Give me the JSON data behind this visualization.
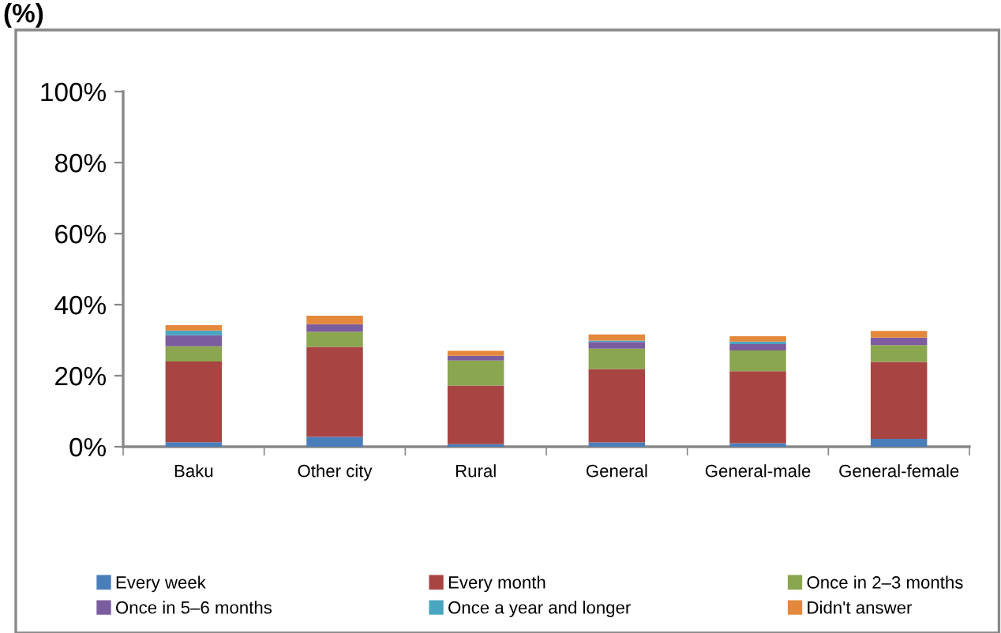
{
  "chart_data": {
    "type": "bar",
    "stacked": true,
    "title": "(%)",
    "categories": [
      "Baku",
      "Other city",
      "Rural",
      "General",
      "General-male",
      "General-female"
    ],
    "series": [
      {
        "name": "Every week",
        "color": "#4a7ebb",
        "values": [
          1.3,
          2.8,
          0.7,
          1.2,
          1.0,
          2.2
        ]
      },
      {
        "name": "Every month",
        "color": "#a84543",
        "values": [
          22.7,
          25.3,
          16.5,
          20.7,
          20.3,
          21.7
        ]
      },
      {
        "name": "Once in 2–3 months",
        "color": "#8aa64f",
        "values": [
          4.3,
          4.3,
          7.1,
          5.7,
          5.8,
          4.7
        ]
      },
      {
        "name": "Once in 5–6 months",
        "color": "#7b5c9e",
        "values": [
          3.1,
          2.1,
          1.3,
          1.9,
          1.8,
          2.1
        ]
      },
      {
        "name": "Once a year and longer",
        "color": "#4aa5c0",
        "values": [
          1.3,
          0,
          0,
          0.4,
          0.7,
          0
        ]
      },
      {
        "name": "Didn't answer",
        "color": "#e4883b",
        "values": [
          1.5,
          2.4,
          1.4,
          1.7,
          1.5,
          1.9
        ]
      }
    ],
    "ylim": [
      0,
      100
    ],
    "yticks": [
      {
        "value": 0,
        "label": "0%"
      },
      {
        "value": 20,
        "label": "20%"
      },
      {
        "value": 40,
        "label": "40%"
      },
      {
        "value": 60,
        "label": "60%"
      },
      {
        "value": 80,
        "label": "80%"
      },
      {
        "value": 100,
        "label": "100%"
      }
    ],
    "grid": false,
    "legend": "bottom"
  }
}
